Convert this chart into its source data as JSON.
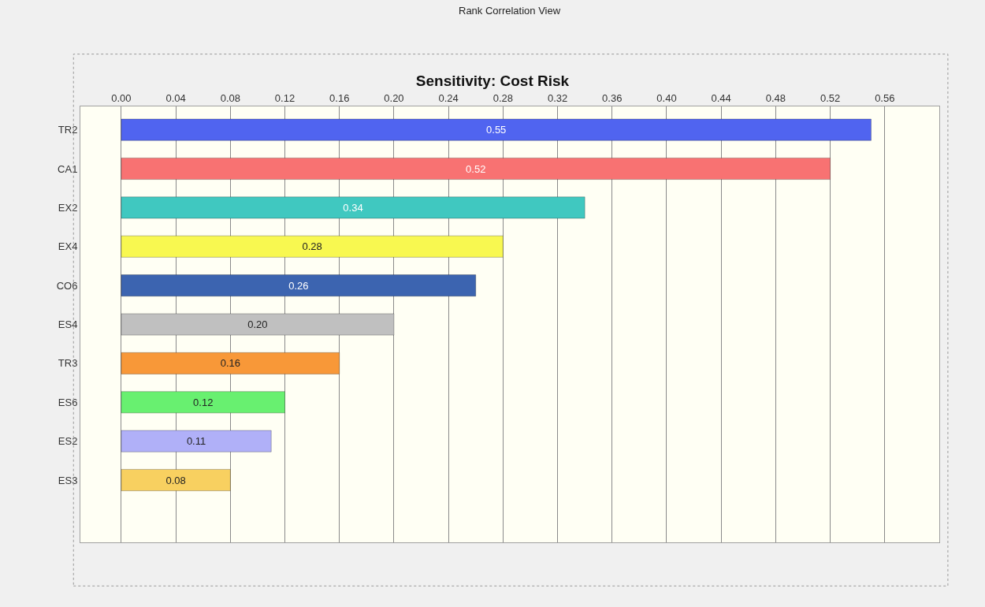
{
  "chart_data": {
    "type": "bar",
    "orientation": "horizontal",
    "title": "Sensitivity: Cost Risk",
    "annotations": [
      "Rank Correlation View"
    ],
    "categories": [
      "TR2",
      "CA1",
      "EX2",
      "EX4",
      "CO6",
      "ES4",
      "TR3",
      "ES6",
      "ES2",
      "ES3"
    ],
    "values": [
      0.55,
      0.52,
      0.34,
      0.28,
      0.26,
      0.2,
      0.16,
      0.12,
      0.11,
      0.08
    ],
    "colors": [
      "#5064f0",
      "#f87272",
      "#40c8c0",
      "#f8f850",
      "#3c64b0",
      "#c0c0c0",
      "#f89838",
      "#68f070",
      "#b0b0f8",
      "#f8d060"
    ],
    "value_labels": [
      "0.55",
      "0.52",
      "0.34",
      "0.28",
      "0.26",
      "0.20",
      "0.16",
      "0.12",
      "0.11",
      "0.08"
    ],
    "xlim": [
      -0.03,
      0.6
    ],
    "xticks": [
      {
        "value": 0,
        "label": "0.00"
      },
      {
        "value": 0.04,
        "label": "0.04"
      },
      {
        "value": 0.08,
        "label": "0.08"
      },
      {
        "value": 0.12,
        "label": "0.12"
      },
      {
        "value": 0.16,
        "label": "0.16"
      },
      {
        "value": 0.2,
        "label": "0.20"
      },
      {
        "value": 0.24,
        "label": "0.24"
      },
      {
        "value": 0.28,
        "label": "0.28"
      },
      {
        "value": 0.32,
        "label": "0.32"
      },
      {
        "value": 0.36,
        "label": "0.36"
      },
      {
        "value": 0.4,
        "label": "0.40"
      },
      {
        "value": 0.44,
        "label": "0.44"
      },
      {
        "value": 0.48,
        "label": "0.48"
      },
      {
        "value": 0.52,
        "label": "0.52"
      },
      {
        "value": 0.56,
        "label": "0.56"
      }
    ],
    "grid": "x"
  }
}
